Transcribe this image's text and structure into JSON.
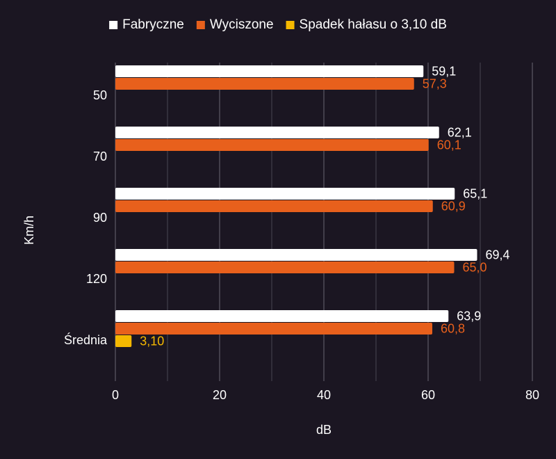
{
  "chart_data": {
    "type": "bar",
    "orientation": "horizontal",
    "categories": [
      "50",
      "70",
      "90",
      "120",
      "Średnia"
    ],
    "series": [
      {
        "name": "Fabryczne",
        "color": "#ffffff",
        "values": [
          59.1,
          62.1,
          65.1,
          69.4,
          63.9
        ],
        "labels": [
          "59,1",
          "62,1",
          "65,1",
          "69,4",
          "63,9"
        ]
      },
      {
        "name": "Wyciszone",
        "color": "#e8601c",
        "values": [
          57.3,
          60.1,
          60.9,
          65.0,
          60.8
        ],
        "labels": [
          "57,3",
          "60,1",
          "60,9",
          "65,0",
          "60,8"
        ]
      },
      {
        "name": "Spadek hałasu o 3,10 dB",
        "color": "#f5b800",
        "values": [
          null,
          null,
          null,
          null,
          3.1
        ],
        "labels": [
          "",
          "",
          "",
          "",
          "3,10"
        ]
      }
    ],
    "xlabel": "dB",
    "ylabel": "Km/h",
    "xlim": [
      0,
      80
    ],
    "xticks": [
      0,
      20,
      40,
      60,
      80
    ],
    "grid": true,
    "legend_position": "top"
  }
}
